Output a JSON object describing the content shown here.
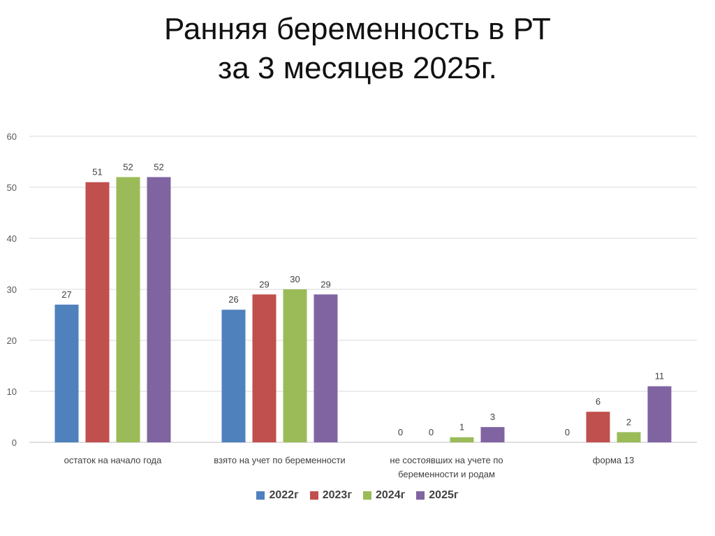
{
  "title_line1": "Ранняя беременность в РТ",
  "title_line2": "за 3 месяцев 2025г.",
  "chart_data": {
    "type": "bar",
    "categories": [
      [
        "остаток на начало года"
      ],
      [
        "взято на учет по беременности"
      ],
      [
        "не состоявших на учете по",
        "беременности и родам"
      ],
      [
        "форма 13"
      ]
    ],
    "series": [
      {
        "name": "2022г",
        "color": "#4f81bd",
        "values": [
          27,
          26,
          0,
          0
        ]
      },
      {
        "name": "2023г",
        "color": "#c0504d",
        "values": [
          51,
          29,
          0,
          6
        ]
      },
      {
        "name": "2024г",
        "color": "#9bbb59",
        "values": [
          52,
          30,
          1,
          2
        ]
      },
      {
        "name": "2025г",
        "color": "#8064a2",
        "values": [
          52,
          29,
          3,
          11
        ]
      }
    ],
    "ylim": [
      0,
      60
    ],
    "yticks": [
      0,
      10,
      20,
      30,
      40,
      50,
      60
    ],
    "grid": true,
    "legend_position": "bottom"
  }
}
